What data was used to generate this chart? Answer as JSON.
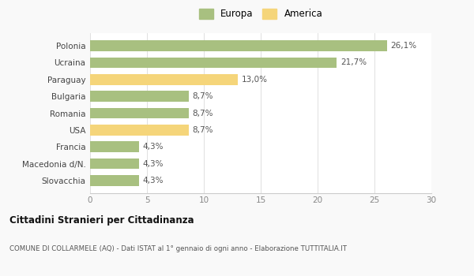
{
  "categories": [
    "Slovacchia",
    "Macedonia d/N.",
    "Francia",
    "USA",
    "Romania",
    "Bulgaria",
    "Paraguay",
    "Ucraina",
    "Polonia"
  ],
  "values": [
    4.3,
    4.3,
    4.3,
    8.7,
    8.7,
    8.7,
    13.0,
    21.7,
    26.1
  ],
  "labels": [
    "4,3%",
    "4,3%",
    "4,3%",
    "8,7%",
    "8,7%",
    "8,7%",
    "13,0%",
    "21,7%",
    "26,1%"
  ],
  "colors": [
    "#a8c080",
    "#a8c080",
    "#a8c080",
    "#f5d57a",
    "#a8c080",
    "#a8c080",
    "#f5d57a",
    "#a8c080",
    "#a8c080"
  ],
  "europa_color": "#a8c080",
  "america_color": "#f5d57a",
  "xlim": [
    0,
    30
  ],
  "xticks": [
    0,
    5,
    10,
    15,
    20,
    25,
    30
  ],
  "title_main": "Cittadini Stranieri per Cittadinanza",
  "title_sub": "COMUNE DI COLLARMELE (AQ) - Dati ISTAT al 1° gennaio di ogni anno - Elaborazione TUTTITALIA.IT",
  "legend_europa": "Europa",
  "legend_america": "America",
  "background_color": "#f9f9f9",
  "bar_background": "#ffffff"
}
